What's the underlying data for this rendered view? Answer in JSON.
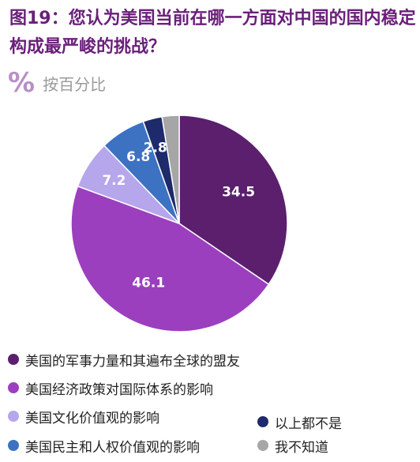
{
  "header": {
    "title": "图19：您认为美国当前在哪一方面对中国的国内稳定构成最严峻的挑战？",
    "unit_symbol": "%",
    "unit_label": "按百分比"
  },
  "chart_data": {
    "type": "pie",
    "title": "图19：您认为美国当前在哪一方面对中国的国内稳定构成最严峻的挑战？",
    "unit": "按百分比",
    "legend_position": "bottom",
    "slices": [
      {
        "label": "美国的军事力量和其遍布全球的盟友",
        "value": 34.5,
        "value_label": "34.5",
        "color": "#5b1f6e"
      },
      {
        "label": "美国经济政策对国际体系的影响",
        "value": 46.1,
        "value_label": "46.1",
        "color": "#9b3fbf"
      },
      {
        "label": "美国文化价值观的影响",
        "value": 7.2,
        "value_label": "7.2",
        "color": "#b6a6ec"
      },
      {
        "label": "美国民主和人权价值观的影响",
        "value": 6.8,
        "value_label": "6.8",
        "color": "#3d72c2"
      },
      {
        "label": "以上都不是",
        "value": 2.85,
        "value_label": "2.85",
        "color": "#1d2a6b"
      },
      {
        "label": "我不知道",
        "value": 2.55,
        "value_label": "",
        "color": "#a6a6a6"
      }
    ]
  }
}
